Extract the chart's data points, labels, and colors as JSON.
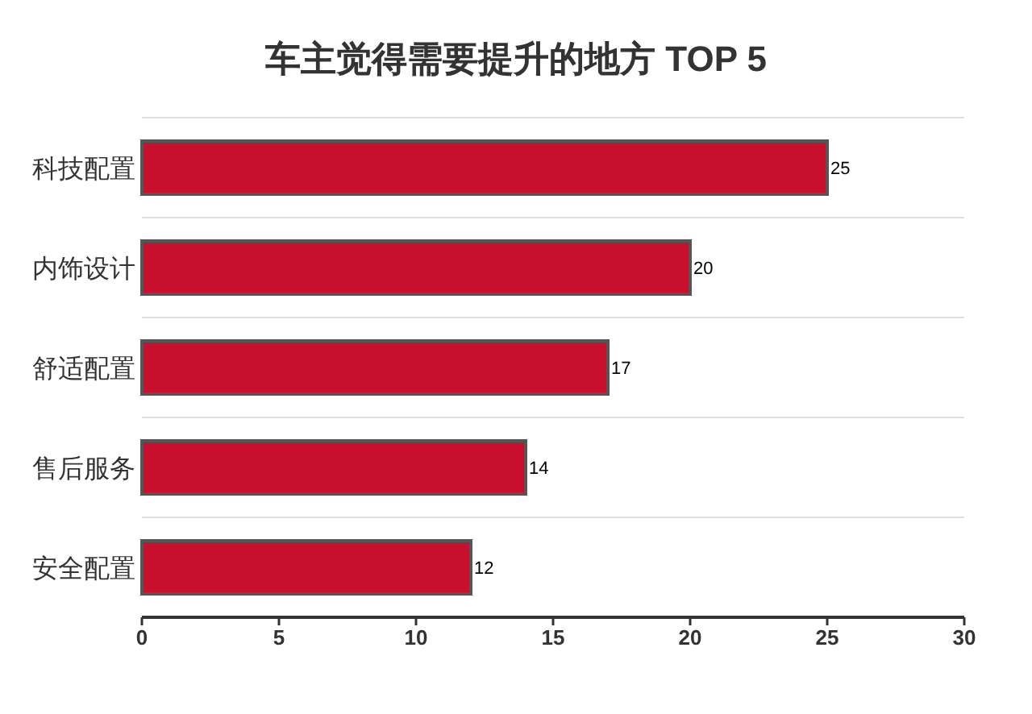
{
  "chart_data": {
    "type": "bar",
    "orientation": "horizontal",
    "title": "车主觉得需要提升的地方 TOP 5",
    "categories": [
      "科技配置",
      "内饰设计",
      "舒适配置",
      "售后服务",
      "安全配置"
    ],
    "values": [
      25,
      20,
      17,
      14,
      12
    ],
    "color": "#c8102e",
    "xlim": [
      0,
      30
    ],
    "xticks": [
      0,
      5,
      10,
      15,
      20,
      25,
      30
    ],
    "grid": "y",
    "data_labels": true
  }
}
